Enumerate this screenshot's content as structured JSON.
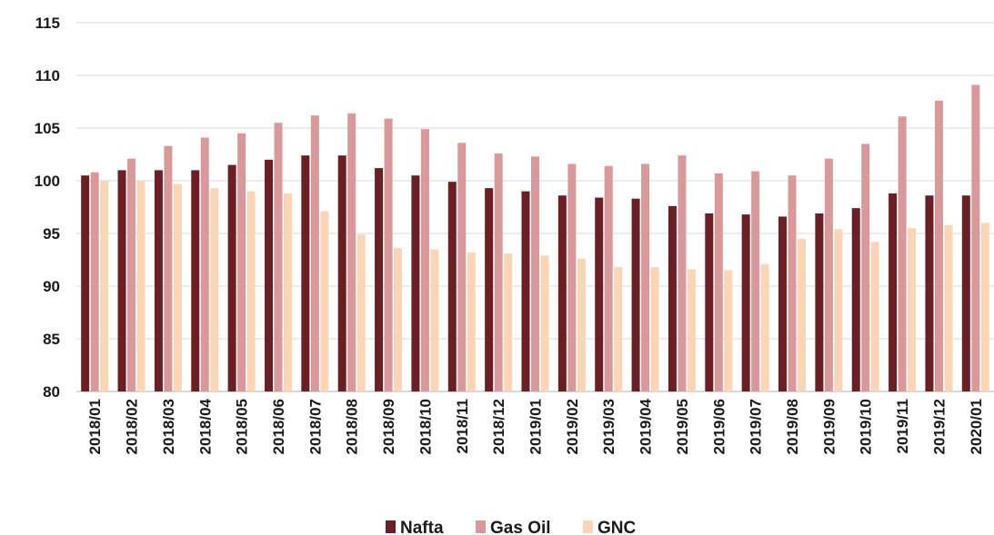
{
  "chart_data": {
    "type": "bar",
    "title": "",
    "xlabel": "",
    "ylabel": "",
    "ylim": [
      80,
      115
    ],
    "yticks": [
      80,
      85,
      90,
      95,
      100,
      105,
      110,
      115
    ],
    "grid": "horizontal",
    "legend_position": "bottom",
    "categories": [
      "2018/01",
      "2018/02",
      "2018/03",
      "2018/04",
      "2018/05",
      "2018/06",
      "2018/07",
      "2018/08",
      "2018/09",
      "2018/10",
      "2018/11",
      "2018/12",
      "2019/01",
      "2019/02",
      "2019/03",
      "2019/04",
      "2019/05",
      "2019/06",
      "2019/07",
      "2019/08",
      "2019/09",
      "2019/10",
      "2019/11",
      "2019/12",
      "2020/01"
    ],
    "series": [
      {
        "name": "Nafta",
        "color": "#6b1e24",
        "values": [
          100.5,
          101.0,
          101.0,
          101.0,
          101.5,
          102.0,
          102.4,
          102.4,
          101.2,
          100.5,
          99.9,
          99.3,
          99.0,
          98.6,
          98.4,
          98.3,
          97.6,
          96.9,
          96.8,
          96.6,
          96.9,
          97.4,
          98.8,
          98.6,
          98.6
        ]
      },
      {
        "name": "Gas Oil",
        "color": "#d9999a",
        "values": [
          100.8,
          102.1,
          103.3,
          104.1,
          104.5,
          105.5,
          106.2,
          106.4,
          105.9,
          104.9,
          103.6,
          102.6,
          102.3,
          101.6,
          101.4,
          101.6,
          102.4,
          100.7,
          100.9,
          100.5,
          102.1,
          103.5,
          106.1,
          107.6,
          109.1
        ]
      },
      {
        "name": "GNC",
        "color": "#fbd5b5",
        "values": [
          100.0,
          100.0,
          99.7,
          99.3,
          99.0,
          98.8,
          97.1,
          94.9,
          93.6,
          93.5,
          93.2,
          93.1,
          92.9,
          92.6,
          91.8,
          91.8,
          91.6,
          91.5,
          92.1,
          94.5,
          95.4,
          94.2,
          95.5,
          95.8,
          96.0
        ]
      }
    ]
  }
}
